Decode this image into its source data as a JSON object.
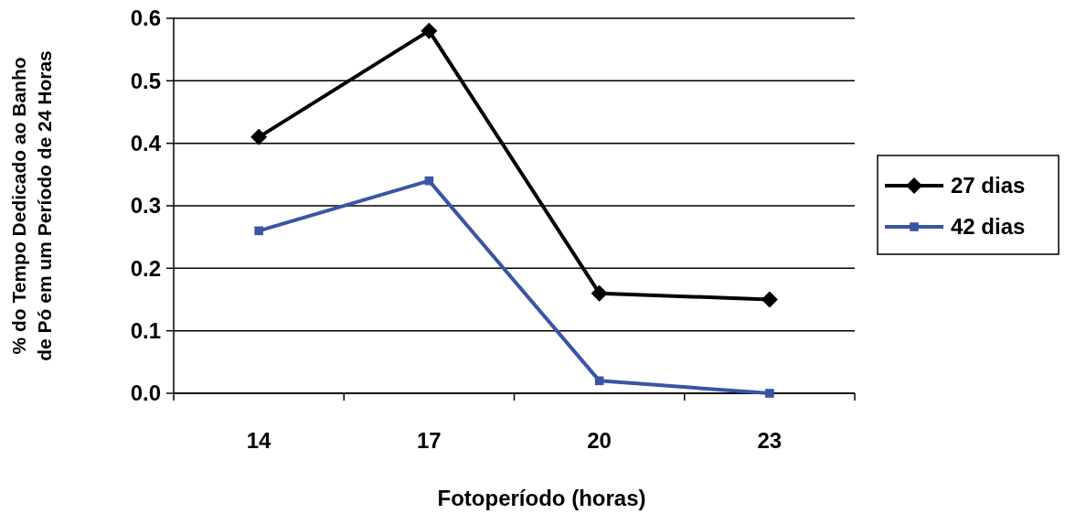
{
  "chart_data": {
    "type": "line",
    "xlabel": "Fotoperíodo (horas)",
    "ylabel": "% do Tempo Dedicado ao Banho\nde Pó em um Período de 24 Horas",
    "categories": [
      "14",
      "17",
      "20",
      "23"
    ],
    "ylim": [
      0,
      0.6
    ],
    "yticks": [
      {
        "value": 0,
        "label": "0.0"
      },
      0.1,
      0.2,
      0.3,
      0.4,
      0.5,
      0.6
    ],
    "grid": "y",
    "legend": "right",
    "series": [
      {
        "name": "27 dias",
        "color": "#000000",
        "marker": "diamond",
        "values": [
          0.41,
          0.58,
          0.16,
          0.15
        ]
      },
      {
        "name": "42 dias",
        "color": "#3955a3",
        "marker": "square",
        "values": [
          0.26,
          0.34,
          0.02,
          0.0
        ]
      }
    ]
  }
}
